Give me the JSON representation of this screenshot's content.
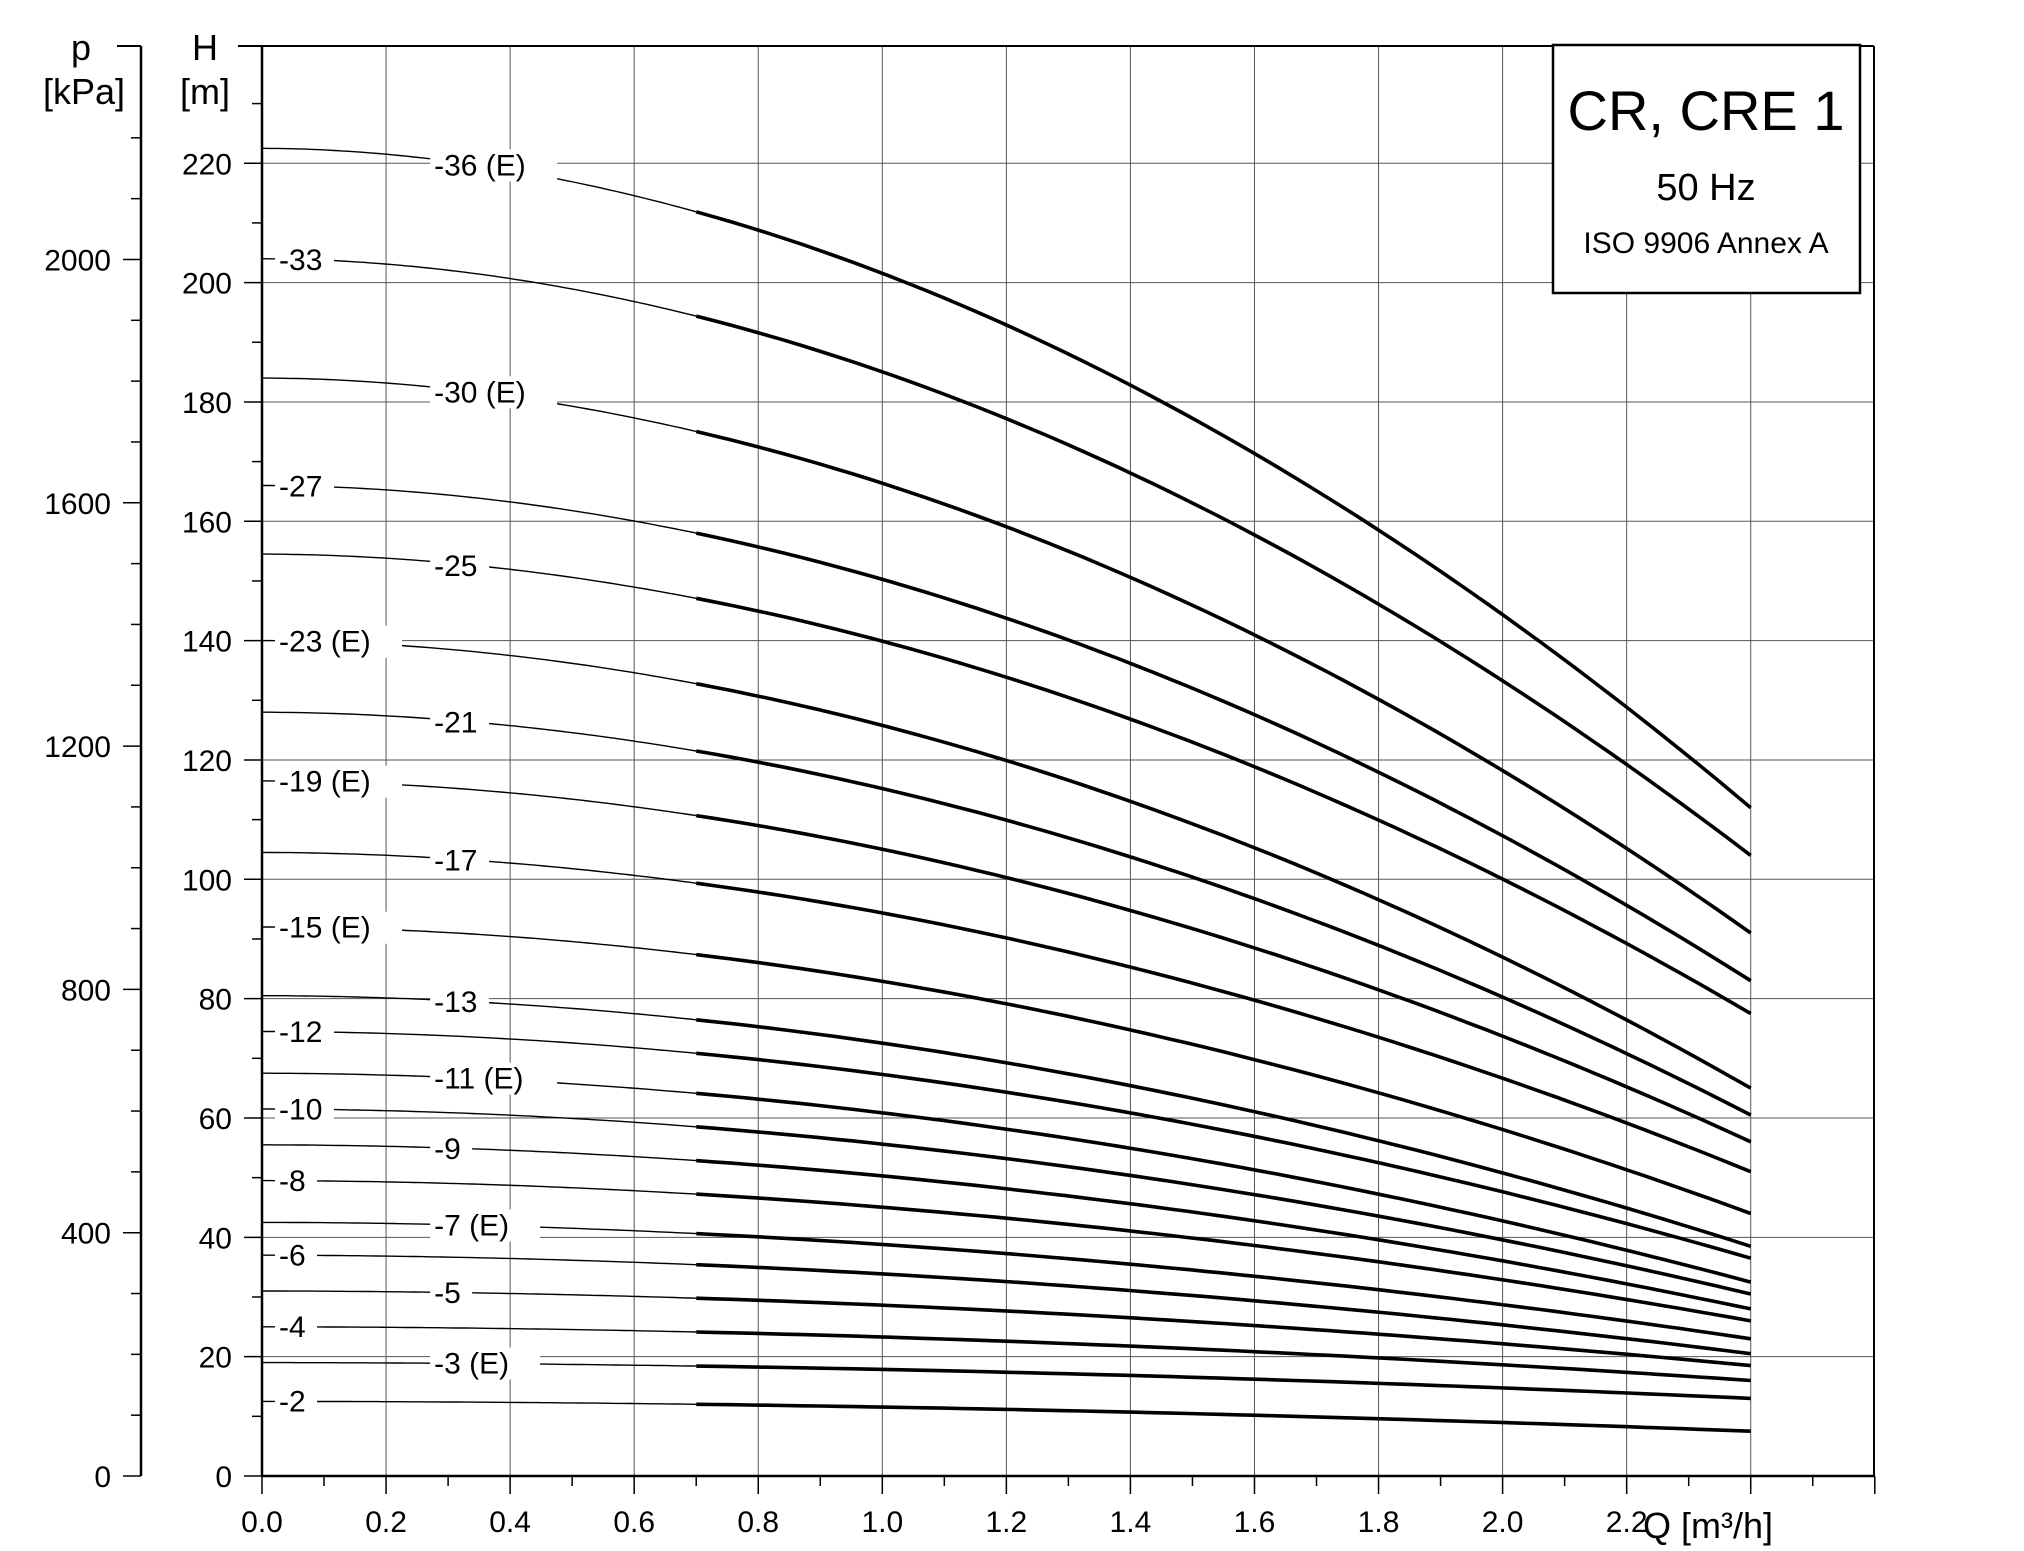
{
  "chart_data": {
    "type": "line",
    "legend": {
      "title": "CR, CRE 1",
      "frequency": "50 Hz",
      "standard": "ISO 9906 Annex A"
    },
    "x_axis": {
      "label": "Q [m³/h]",
      "range": [
        0,
        2.6
      ],
      "ticks": [
        "0.0",
        "0.2",
        "0.4",
        "0.6",
        "0.8",
        "1.0",
        "1.2",
        "1.4",
        "1.6",
        "1.8",
        "2.0",
        "2.2"
      ]
    },
    "y_axis_left": {
      "label_symbol": "H",
      "label_unit": "[m]",
      "range": [
        0,
        240
      ],
      "ticks": [
        "0",
        "20",
        "40",
        "60",
        "80",
        "100",
        "120",
        "140",
        "160",
        "180",
        "200",
        "220"
      ]
    },
    "y_axis_pressure": {
      "label_symbol": "p",
      "label_unit": "[kPa]",
      "ticks": [
        "0",
        "400",
        "800",
        "1200",
        "1600",
        "2000"
      ]
    },
    "grid": true,
    "bold_range": [
      0.7,
      2.4
    ],
    "series": [
      {
        "name": "-36 (E)",
        "H0": 222.5,
        "Hend": 112
      },
      {
        "name": "-33",
        "H0": 204,
        "Hend": 104
      },
      {
        "name": "-30 (E)",
        "H0": 184,
        "Hend": 91
      },
      {
        "name": "-27",
        "H0": 166,
        "Hend": 83
      },
      {
        "name": "-25",
        "H0": 154.5,
        "Hend": 77.5
      },
      {
        "name": "-23 (E)",
        "H0": 140,
        "Hend": 65
      },
      {
        "name": "-21",
        "H0": 128,
        "Hend": 60.5
      },
      {
        "name": "-19 (E)",
        "H0": 116.5,
        "Hend": 56
      },
      {
        "name": "-17",
        "H0": 104.5,
        "Hend": 51
      },
      {
        "name": "-15 (E)",
        "H0": 92,
        "Hend": 44
      },
      {
        "name": "-13",
        "H0": 80.5,
        "Hend": 38.5
      },
      {
        "name": "-12",
        "H0": 74.5,
        "Hend": 36.5
      },
      {
        "name": "-11 (E)",
        "H0": 67.5,
        "Hend": 32.5
      },
      {
        "name": "-10",
        "H0": 61.5,
        "Hend": 30.5
      },
      {
        "name": "-9",
        "H0": 55.5,
        "Hend": 28
      },
      {
        "name": "-8",
        "H0": 49.5,
        "Hend": 26
      },
      {
        "name": "-7 (E)",
        "H0": 42.5,
        "Hend": 23
      },
      {
        "name": "-6",
        "H0": 37,
        "Hend": 20.5
      },
      {
        "name": "-5",
        "H0": 31,
        "Hend": 18.5
      },
      {
        "name": "-4",
        "H0": 25,
        "Hend": 16
      },
      {
        "name": "-3 (E)",
        "H0": 19,
        "Hend": 13
      },
      {
        "name": "-2",
        "H0": 12.5,
        "Hend": 7.5
      }
    ]
  }
}
